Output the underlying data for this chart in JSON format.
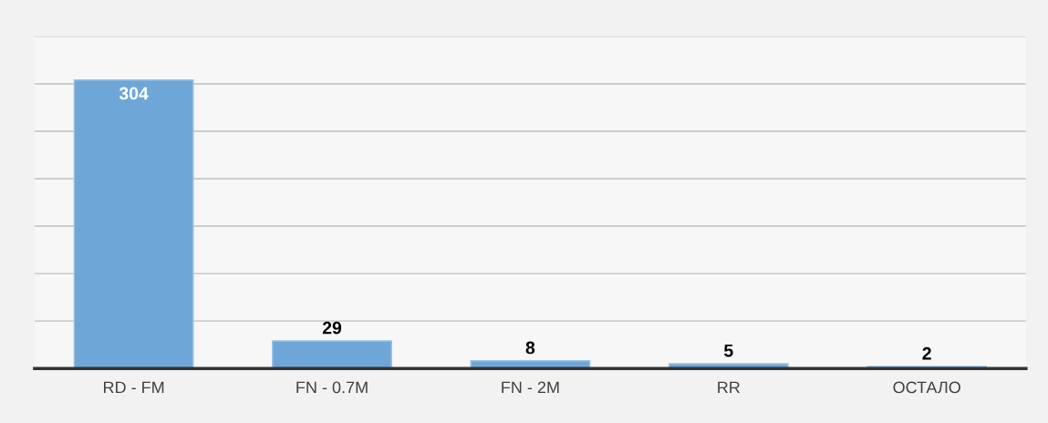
{
  "chart_data": {
    "type": "bar",
    "categories": [
      "RD - FM",
      "FN - 0.7M",
      "FN - 2M",
      "RR",
      "ОСТАЛО"
    ],
    "values": [
      304,
      29,
      8,
      5,
      2
    ],
    "color": "#6fa6d8",
    "data_labels": true,
    "ylim": [
      0,
      350
    ],
    "yticks": [
      {
        "value": 0,
        "label": null
      },
      {
        "value": 50,
        "label": null
      },
      {
        "value": 100,
        "label": null
      },
      {
        "value": 150,
        "label": null
      },
      {
        "value": 200,
        "label": null
      },
      {
        "value": 250,
        "label": null
      },
      {
        "value": 300,
        "label": null
      },
      {
        "value": 350,
        "label": null
      }
    ],
    "grid": "y",
    "tick_labels": "x"
  }
}
